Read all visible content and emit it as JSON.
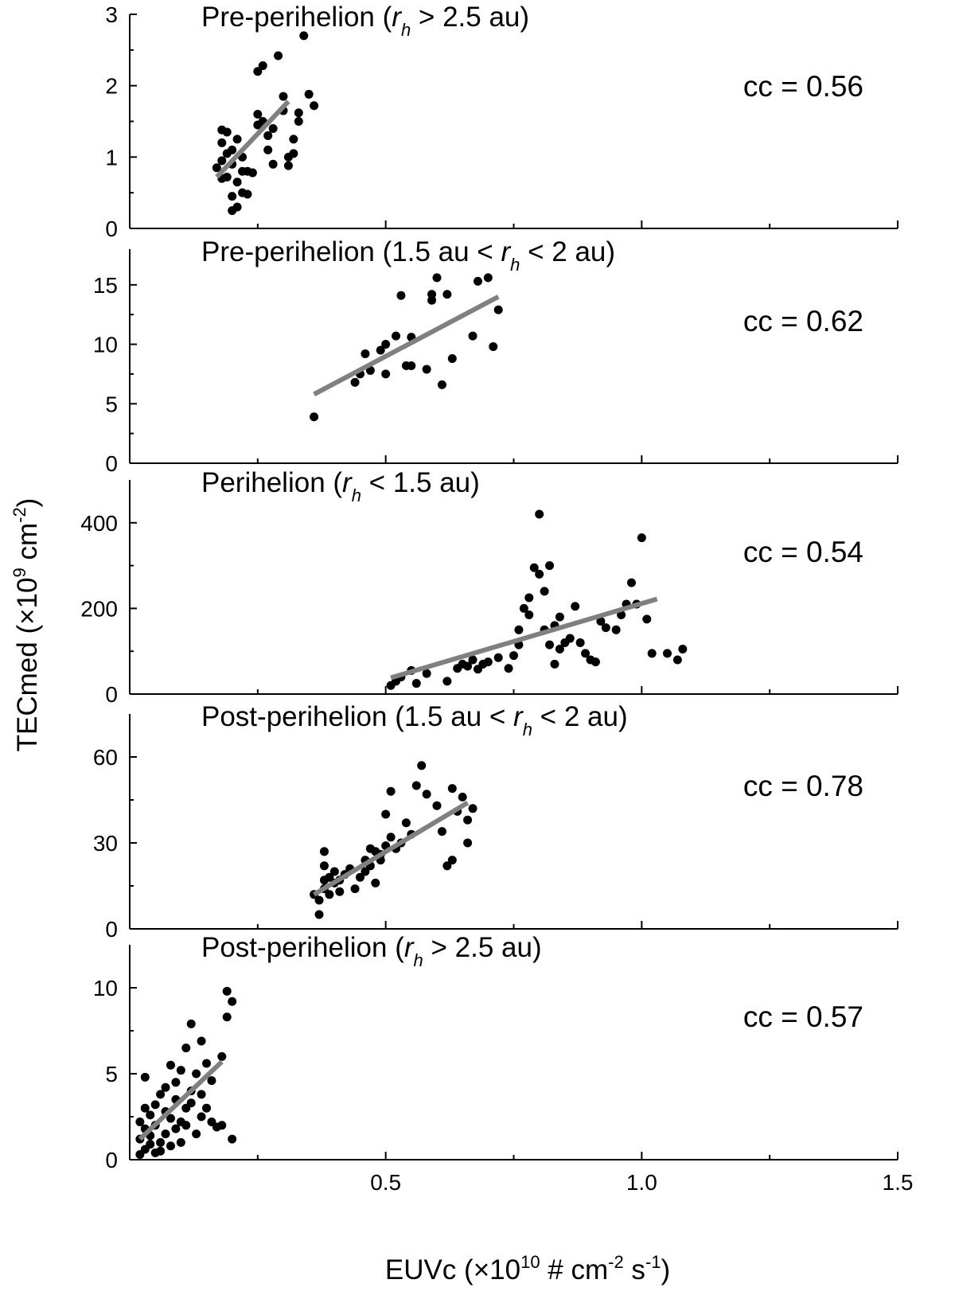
{
  "chart_data": {
    "type": "scatter",
    "xlabel_prefix": "EUVc (",
    "xlabel_times": "×10",
    "xlabel_exp": "10",
    "xlabel_rest1": " # cm",
    "xlabel_exp2": "-2",
    "xlabel_rest2": " s",
    "xlabel_exp3": "-1",
    "xlabel_close": ")",
    "ylabel_prefix": "TECmed (",
    "ylabel_times": "×10",
    "ylabel_exp": "9",
    "ylabel_rest": " cm",
    "ylabel_exp2": "-2",
    "ylabel_close": ")",
    "xlim": [
      0.0,
      1.5
    ],
    "x_ticks": [
      "0.5",
      "1.0",
      "1.5"
    ],
    "panels": [
      {
        "title_parts": [
          "Pre-perihelion (",
          "r",
          "h",
          " > 2.5 au)"
        ],
        "cc_label": "cc = 0.56",
        "ylim": [
          0,
          3
        ],
        "y_ticks": [
          "0",
          "1",
          "2",
          "3"
        ],
        "fit": {
          "x": [
            0.17,
            0.31
          ],
          "y": [
            0.72,
            1.78
          ]
        },
        "points": [
          [
            0.17,
            0.85
          ],
          [
            0.18,
            1.38
          ],
          [
            0.19,
            1.35
          ],
          [
            0.18,
            1.2
          ],
          [
            0.19,
            1.05
          ],
          [
            0.18,
            0.95
          ],
          [
            0.2,
            0.9
          ],
          [
            0.19,
            0.72
          ],
          [
            0.18,
            0.7
          ],
          [
            0.2,
            0.25
          ],
          [
            0.21,
            0.3
          ],
          [
            0.2,
            0.45
          ],
          [
            0.22,
            0.5
          ],
          [
            0.23,
            0.48
          ],
          [
            0.21,
            0.65
          ],
          [
            0.22,
            0.8
          ],
          [
            0.2,
            1.1
          ],
          [
            0.21,
            1.25
          ],
          [
            0.22,
            1.0
          ],
          [
            0.23,
            0.8
          ],
          [
            0.24,
            0.78
          ],
          [
            0.25,
            1.45
          ],
          [
            0.25,
            1.6
          ],
          [
            0.26,
            1.5
          ],
          [
            0.25,
            2.2
          ],
          [
            0.26,
            2.28
          ],
          [
            0.27,
            1.3
          ],
          [
            0.27,
            1.1
          ],
          [
            0.28,
            0.9
          ],
          [
            0.28,
            1.4
          ],
          [
            0.29,
            2.42
          ],
          [
            0.3,
            1.85
          ],
          [
            0.3,
            1.65
          ],
          [
            0.31,
            1.0
          ],
          [
            0.31,
            0.88
          ],
          [
            0.32,
            1.25
          ],
          [
            0.32,
            1.05
          ],
          [
            0.33,
            1.5
          ],
          [
            0.33,
            1.62
          ],
          [
            0.34,
            2.7
          ],
          [
            0.35,
            1.88
          ],
          [
            0.36,
            1.72
          ]
        ]
      },
      {
        "title_parts": [
          "Pre-perihelion (1.5 au < ",
          "r",
          "h",
          " < 2 au)"
        ],
        "cc_label": "cc = 0.62",
        "ylim": [
          0,
          18
        ],
        "y_ticks": [
          "0",
          "5",
          "10",
          "15"
        ],
        "fit": {
          "x": [
            0.36,
            0.72
          ],
          "y": [
            5.8,
            14.0
          ]
        },
        "points": [
          [
            0.36,
            3.9
          ],
          [
            0.44,
            6.8
          ],
          [
            0.45,
            7.5
          ],
          [
            0.46,
            9.2
          ],
          [
            0.47,
            7.8
          ],
          [
            0.49,
            9.5
          ],
          [
            0.5,
            7.5
          ],
          [
            0.5,
            10.0
          ],
          [
            0.52,
            10.7
          ],
          [
            0.53,
            14.1
          ],
          [
            0.54,
            8.2
          ],
          [
            0.55,
            8.2
          ],
          [
            0.55,
            10.6
          ],
          [
            0.58,
            7.9
          ],
          [
            0.59,
            13.7
          ],
          [
            0.59,
            14.2
          ],
          [
            0.6,
            15.6
          ],
          [
            0.61,
            6.6
          ],
          [
            0.62,
            14.2
          ],
          [
            0.63,
            8.8
          ],
          [
            0.67,
            10.7
          ],
          [
            0.68,
            15.3
          ],
          [
            0.7,
            15.6
          ],
          [
            0.71,
            9.8
          ],
          [
            0.72,
            12.9
          ]
        ]
      },
      {
        "title_parts": [
          "Perihelion (",
          "r",
          "h",
          " < 1.5 au)"
        ],
        "cc_label": "cc = 0.54",
        "ylim": [
          0,
          500
        ],
        "y_ticks": [
          "0",
          "200",
          "400"
        ],
        "fit": {
          "x": [
            0.51,
            1.03
          ],
          "y": [
            38,
            222
          ]
        },
        "points": [
          [
            0.51,
            20
          ],
          [
            0.52,
            30
          ],
          [
            0.53,
            40
          ],
          [
            0.55,
            55
          ],
          [
            0.56,
            25
          ],
          [
            0.58,
            48
          ],
          [
            0.62,
            30
          ],
          [
            0.64,
            60
          ],
          [
            0.65,
            70
          ],
          [
            0.66,
            65
          ],
          [
            0.67,
            80
          ],
          [
            0.68,
            58
          ],
          [
            0.69,
            70
          ],
          [
            0.7,
            75
          ],
          [
            0.72,
            85
          ],
          [
            0.74,
            60
          ],
          [
            0.75,
            90
          ],
          [
            0.76,
            115
          ],
          [
            0.76,
            150
          ],
          [
            0.77,
            200
          ],
          [
            0.78,
            225
          ],
          [
            0.78,
            185
          ],
          [
            0.79,
            295
          ],
          [
            0.8,
            280
          ],
          [
            0.8,
            420
          ],
          [
            0.81,
            240
          ],
          [
            0.81,
            150
          ],
          [
            0.82,
            300
          ],
          [
            0.82,
            115
          ],
          [
            0.83,
            160
          ],
          [
            0.83,
            70
          ],
          [
            0.84,
            105
          ],
          [
            0.84,
            180
          ],
          [
            0.85,
            120
          ],
          [
            0.86,
            130
          ],
          [
            0.87,
            205
          ],
          [
            0.88,
            120
          ],
          [
            0.89,
            95
          ],
          [
            0.9,
            80
          ],
          [
            0.91,
            75
          ],
          [
            0.92,
            170
          ],
          [
            0.93,
            155
          ],
          [
            0.95,
            150
          ],
          [
            0.96,
            185
          ],
          [
            0.97,
            210
          ],
          [
            0.98,
            260
          ],
          [
            0.99,
            210
          ],
          [
            1.0,
            365
          ],
          [
            1.01,
            175
          ],
          [
            1.02,
            95
          ],
          [
            1.05,
            95
          ],
          [
            1.07,
            80
          ],
          [
            1.08,
            105
          ]
        ]
      },
      {
        "title_parts": [
          "Post-perihelion (1.5 au < ",
          "r",
          "h",
          " < 2 au)"
        ],
        "cc_label": "cc = 0.78",
        "ylim": [
          0,
          75
        ],
        "y_ticks": [
          "0",
          "30",
          "60"
        ],
        "fit": {
          "x": [
            0.36,
            0.66
          ],
          "y": [
            12,
            44
          ]
        },
        "points": [
          [
            0.36,
            12
          ],
          [
            0.37,
            10
          ],
          [
            0.37,
            5
          ],
          [
            0.38,
            17
          ],
          [
            0.38,
            14
          ],
          [
            0.38,
            22
          ],
          [
            0.38,
            27
          ],
          [
            0.39,
            18
          ],
          [
            0.39,
            12
          ],
          [
            0.4,
            16
          ],
          [
            0.4,
            20
          ],
          [
            0.41,
            13
          ],
          [
            0.41,
            17
          ],
          [
            0.42,
            19
          ],
          [
            0.43,
            21
          ],
          [
            0.44,
            14
          ],
          [
            0.45,
            18
          ],
          [
            0.46,
            24
          ],
          [
            0.46,
            20
          ],
          [
            0.47,
            22
          ],
          [
            0.47,
            28
          ],
          [
            0.48,
            27
          ],
          [
            0.48,
            16
          ],
          [
            0.49,
            26
          ],
          [
            0.49,
            24
          ],
          [
            0.5,
            29
          ],
          [
            0.5,
            40
          ],
          [
            0.51,
            48
          ],
          [
            0.51,
            32
          ],
          [
            0.52,
            28
          ],
          [
            0.53,
            30
          ],
          [
            0.54,
            37
          ],
          [
            0.55,
            33
          ],
          [
            0.56,
            50
          ],
          [
            0.57,
            57
          ],
          [
            0.58,
            47
          ],
          [
            0.6,
            43
          ],
          [
            0.61,
            34
          ],
          [
            0.62,
            22
          ],
          [
            0.63,
            24
          ],
          [
            0.63,
            49
          ],
          [
            0.64,
            41
          ],
          [
            0.65,
            46
          ],
          [
            0.66,
            38
          ],
          [
            0.66,
            30
          ],
          [
            0.67,
            42
          ]
        ]
      },
      {
        "title_parts": [
          "Post-perihelion (",
          "r",
          "h",
          " > 2.5 au)"
        ],
        "cc_label": "cc = 0.57",
        "ylim": [
          0,
          12.5
        ],
        "y_ticks": [
          "0",
          "5",
          "10"
        ],
        "fit": {
          "x": [
            0.02,
            0.18
          ],
          "y": [
            1.2,
            5.7
          ]
        },
        "points": [
          [
            0.02,
            0.3
          ],
          [
            0.02,
            1.2
          ],
          [
            0.02,
            2.2
          ],
          [
            0.03,
            0.6
          ],
          [
            0.03,
            3.0
          ],
          [
            0.03,
            4.8
          ],
          [
            0.03,
            1.8
          ],
          [
            0.04,
            0.9
          ],
          [
            0.04,
            2.6
          ],
          [
            0.04,
            1.4
          ],
          [
            0.05,
            0.4
          ],
          [
            0.05,
            3.2
          ],
          [
            0.05,
            2.0
          ],
          [
            0.06,
            1.0
          ],
          [
            0.06,
            3.8
          ],
          [
            0.06,
            0.5
          ],
          [
            0.07,
            2.8
          ],
          [
            0.07,
            1.5
          ],
          [
            0.07,
            4.2
          ],
          [
            0.08,
            0.8
          ],
          [
            0.08,
            2.4
          ],
          [
            0.08,
            5.5
          ],
          [
            0.09,
            3.5
          ],
          [
            0.09,
            1.8
          ],
          [
            0.09,
            4.5
          ],
          [
            0.1,
            2.2
          ],
          [
            0.1,
            1.0
          ],
          [
            0.1,
            5.2
          ],
          [
            0.11,
            3.0
          ],
          [
            0.11,
            6.5
          ],
          [
            0.11,
            2.0
          ],
          [
            0.12,
            4.0
          ],
          [
            0.12,
            7.9
          ],
          [
            0.12,
            3.3
          ],
          [
            0.13,
            1.5
          ],
          [
            0.13,
            5.0
          ],
          [
            0.14,
            6.9
          ],
          [
            0.14,
            3.8
          ],
          [
            0.14,
            2.5
          ],
          [
            0.15,
            5.6
          ],
          [
            0.15,
            3.0
          ],
          [
            0.16,
            4.6
          ],
          [
            0.16,
            2.2
          ],
          [
            0.17,
            1.9
          ],
          [
            0.18,
            6.0
          ],
          [
            0.18,
            2.0
          ],
          [
            0.19,
            9.8
          ],
          [
            0.19,
            8.3
          ],
          [
            0.2,
            9.2
          ],
          [
            0.2,
            1.2
          ]
        ]
      }
    ]
  }
}
